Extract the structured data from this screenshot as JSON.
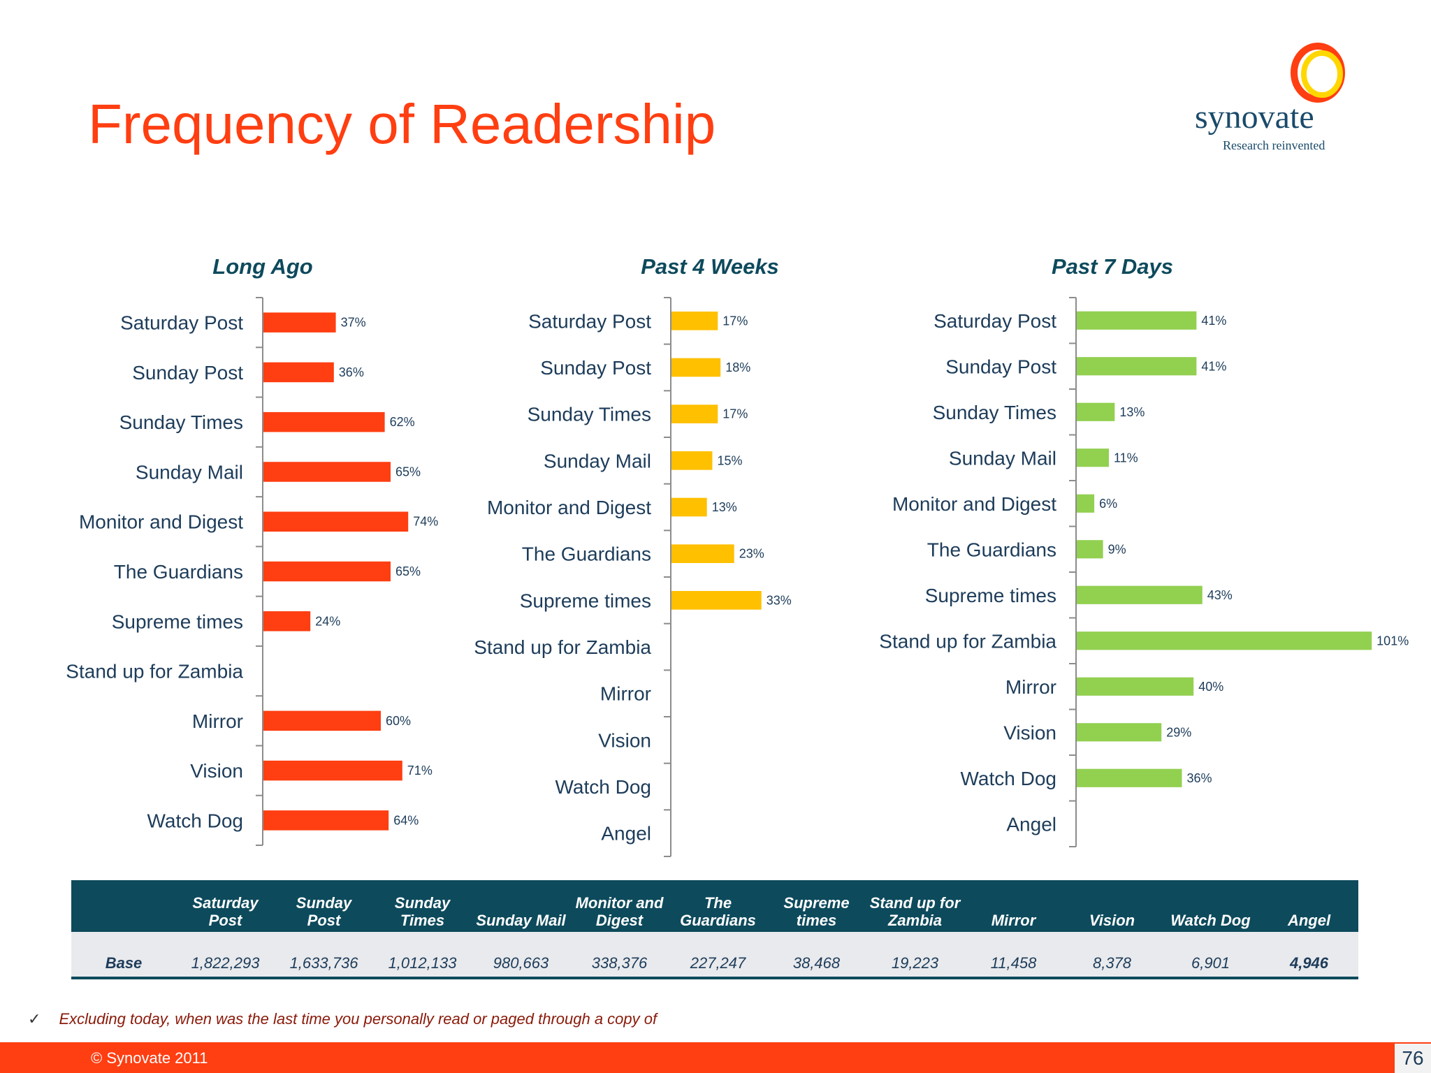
{
  "title": "Frequency of Readership",
  "logo": {
    "name": "synovate",
    "tagline": "Research reinvented"
  },
  "chart_data": [
    {
      "type": "bar",
      "orientation": "horizontal",
      "title": "Long Ago",
      "color": "#ff3e11",
      "categories": [
        "Saturday Post",
        "Sunday Post",
        "Sunday Times",
        "Sunday Mail",
        "Monitor and Digest",
        "The Guardians",
        "Supreme times",
        "Stand up for Zambia",
        "Mirror",
        "Vision",
        "Watch Dog"
      ],
      "values": [
        37,
        36,
        62,
        65,
        74,
        65,
        24,
        null,
        60,
        71,
        64
      ],
      "labels": [
        "37%",
        "36%",
        "62%",
        "65%",
        "74%",
        "65%",
        "24%",
        "",
        "60%",
        "71%",
        "64%"
      ]
    },
    {
      "type": "bar",
      "orientation": "horizontal",
      "title": "Past 4 Weeks",
      "color": "#ffc000",
      "categories": [
        "Saturday Post",
        "Sunday Post",
        "Sunday Times",
        "Sunday Mail",
        "Monitor and Digest",
        "The Guardians",
        "Supreme times",
        "Stand up for Zambia",
        "Mirror",
        "Vision",
        "Watch Dog",
        "Angel"
      ],
      "values": [
        17,
        18,
        17,
        15,
        13,
        23,
        33,
        null,
        null,
        null,
        null,
        null
      ],
      "labels": [
        "17%",
        "18%",
        "17%",
        "15%",
        "13%",
        "23%",
        "33%",
        "",
        "",
        "",
        "",
        ""
      ]
    },
    {
      "type": "bar",
      "orientation": "horizontal",
      "title": "Past 7 Days",
      "color": "#92d050",
      "categories": [
        "Saturday Post",
        "Sunday Post",
        "Sunday Times",
        "Sunday Mail",
        "Monitor and Digest",
        "The Guardians",
        "Supreme times",
        "Stand up for Zambia",
        "Mirror",
        "Vision",
        "Watch Dog",
        "Angel"
      ],
      "values": [
        41,
        41,
        13,
        11,
        6,
        9,
        43,
        101,
        40,
        29,
        36,
        null
      ],
      "labels": [
        "41%",
        "41%",
        "13%",
        "11%",
        "6%",
        "9%",
        "43%",
        "101%",
        "40%",
        "29%",
        "36%",
        ""
      ]
    }
  ],
  "base_table": {
    "row_label": "Base",
    "columns": [
      {
        "header_lines": [
          "Saturday",
          "Post"
        ],
        "value": "1,822,293"
      },
      {
        "header_lines": [
          "Sunday",
          "Post"
        ],
        "value": "1,633,736"
      },
      {
        "header_lines": [
          "Sunday",
          "Times"
        ],
        "value": "1,012,133"
      },
      {
        "header_lines": [
          "",
          "Sunday Mail"
        ],
        "value": "980,663"
      },
      {
        "header_lines": [
          "Monitor and",
          "Digest"
        ],
        "value": "338,376"
      },
      {
        "header_lines": [
          "The",
          "Guardians"
        ],
        "value": "227,247"
      },
      {
        "header_lines": [
          "Supreme",
          "times"
        ],
        "value": "38,468"
      },
      {
        "header_lines": [
          "Stand up for",
          "Zambia"
        ],
        "value": "19,223"
      },
      {
        "header_lines": [
          "",
          "Mirror"
        ],
        "value": "11,458"
      },
      {
        "header_lines": [
          "",
          "Vision"
        ],
        "value": "8,378"
      },
      {
        "header_lines": [
          "",
          "Watch Dog"
        ],
        "value": "6,901"
      },
      {
        "header_lines": [
          "",
          "Angel"
        ],
        "value": "4,946"
      }
    ]
  },
  "footnote": "Excluding  today, when was the last time you personally read or paged through a copy of",
  "footnote_mark": "✓",
  "copyright": "© Synovate 2011",
  "page_number": "76"
}
